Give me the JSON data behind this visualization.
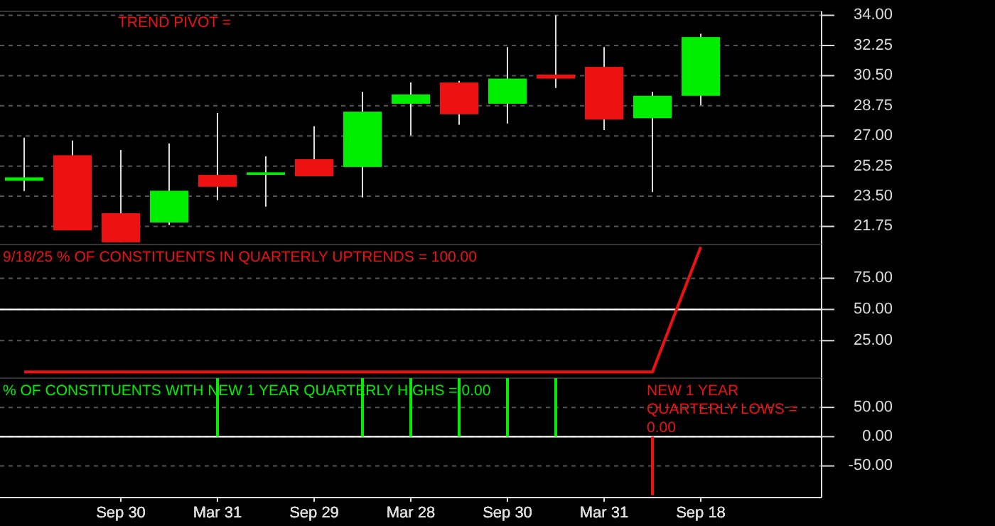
{
  "chart_data": [
    {
      "type": "candlestick",
      "categories": [
        null,
        null,
        "Sep 30",
        null,
        "Mar 31",
        null,
        "Sep 29",
        null,
        "Mar 28",
        null,
        "Sep 30",
        null,
        "Mar 31",
        null,
        "Sep 18",
        null,
        null
      ],
      "ohlc": [
        [
          24.4,
          26.9,
          23.8,
          24.6
        ],
        [
          25.88,
          26.73,
          21.52,
          21.52
        ],
        [
          22.52,
          26.19,
          20.83,
          20.83
        ],
        [
          21.98,
          26.57,
          21.83,
          23.82
        ],
        [
          24.74,
          28.33,
          23.28,
          24.05
        ],
        [
          24.74,
          25.81,
          22.9,
          24.89
        ],
        [
          25.65,
          27.57,
          24.66,
          24.66
        ],
        [
          25.2,
          29.56,
          23.43,
          28.41
        ],
        [
          28.87,
          30.1,
          27.03,
          29.41
        ],
        [
          30.1,
          30.2,
          27.65,
          28.26
        ],
        [
          28.87,
          32.16,
          27.72,
          30.33
        ],
        [
          30.56,
          34.0,
          29.79,
          30.33
        ],
        [
          31.01,
          32.16,
          27.34,
          27.95
        ],
        [
          28.03,
          29.56,
          23.74,
          29.33
        ],
        [
          29.33,
          32.93,
          28.79,
          32.74
        ],
        null,
        null
      ],
      "colors": [
        "#00ee00",
        "#ee1111",
        "#ee1111",
        "#00ee00",
        "#ee1111",
        "#00ee00",
        "#ee1111",
        "#00ee00",
        "#00ee00",
        "#ee1111",
        "#00ee00",
        "#ee1111",
        "#ee1111",
        "#00ee00",
        "#00ee00",
        null,
        null
      ],
      "ylim": [
        20.7,
        34.23
      ],
      "yticks": [
        {
          "value": 21.75,
          "label": "21.75"
        },
        {
          "value": 23.5,
          "label": "23.50"
        },
        {
          "value": 25.25,
          "label": "25.25"
        },
        {
          "value": 27,
          "label": "27.00"
        },
        {
          "value": 28.75,
          "label": "28.75"
        },
        {
          "value": 30.5,
          "label": "30.50"
        },
        {
          "value": 32.25,
          "label": "32.25"
        },
        {
          "value": 34,
          "label": "34.00"
        }
      ],
      "grid": "y",
      "tick_labels": "y",
      "annotations": [
        "TREND PIVOT ="
      ]
    },
    {
      "type": "line",
      "categories": [
        null,
        null,
        "Sep 30",
        null,
        "Mar 31",
        null,
        "Sep 29",
        null,
        "Mar 28",
        null,
        "Sep 30",
        null,
        "Mar 31",
        null,
        "Sep 18",
        null,
        null
      ],
      "series": [
        {
          "name": "9/18/25  % OF CONSTITUENTS IN QUARTERLY UPTRENDS = 100.00",
          "color": "#ee1111",
          "values": [
            0,
            0,
            0,
            0,
            0,
            0,
            0,
            0,
            0,
            0,
            0,
            0,
            0,
            0,
            100,
            null,
            null
          ]
        }
      ],
      "ylim": [
        -5,
        102
      ],
      "yticks": [
        {
          "value": 25,
          "label": "25.00"
        },
        {
          "value": 50,
          "label": "50.00"
        },
        {
          "value": 75,
          "label": "75.00"
        }
      ],
      "ref_lines": [
        {
          "axis": "y",
          "value": 50,
          "color": "#ffffff"
        }
      ],
      "grid": "y",
      "tick_labels": "y",
      "legend": "top left"
    },
    {
      "type": "bar",
      "categories": [
        null,
        null,
        "Sep 30",
        null,
        "Mar 31",
        null,
        "Sep 29",
        null,
        "Mar 28",
        null,
        "Sep 30",
        null,
        "Mar 31",
        null,
        "Sep 18",
        null,
        null
      ],
      "series": [
        {
          "name": "% OF CONSTITUENTS WITH NEW 1 YEAR QUARTERLY HIGHS = 0.00",
          "color": "#00ee00",
          "values": [
            null,
            null,
            null,
            null,
            100,
            null,
            null,
            100,
            100,
            100,
            100,
            100,
            null,
            null,
            null,
            null,
            null
          ]
        },
        {
          "name": "NEW 1 YEAR QUARTERLY LOWS = 0.00",
          "color": "#ee1111",
          "values": [
            null,
            null,
            null,
            null,
            null,
            null,
            null,
            null,
            null,
            null,
            null,
            null,
            null,
            -100,
            null,
            null,
            null
          ]
        }
      ],
      "ylim": [
        -104,
        100
      ],
      "yticks": [
        {
          "value": -50,
          "label": "-50.00"
        },
        {
          "value": 0,
          "label": "0.00"
        },
        {
          "value": 50,
          "label": "50.00"
        }
      ],
      "ref_lines": [
        {
          "axis": "y",
          "value": 0,
          "color": "#ffffff"
        }
      ],
      "grid": "y",
      "legend": "top left"
    }
  ]
}
